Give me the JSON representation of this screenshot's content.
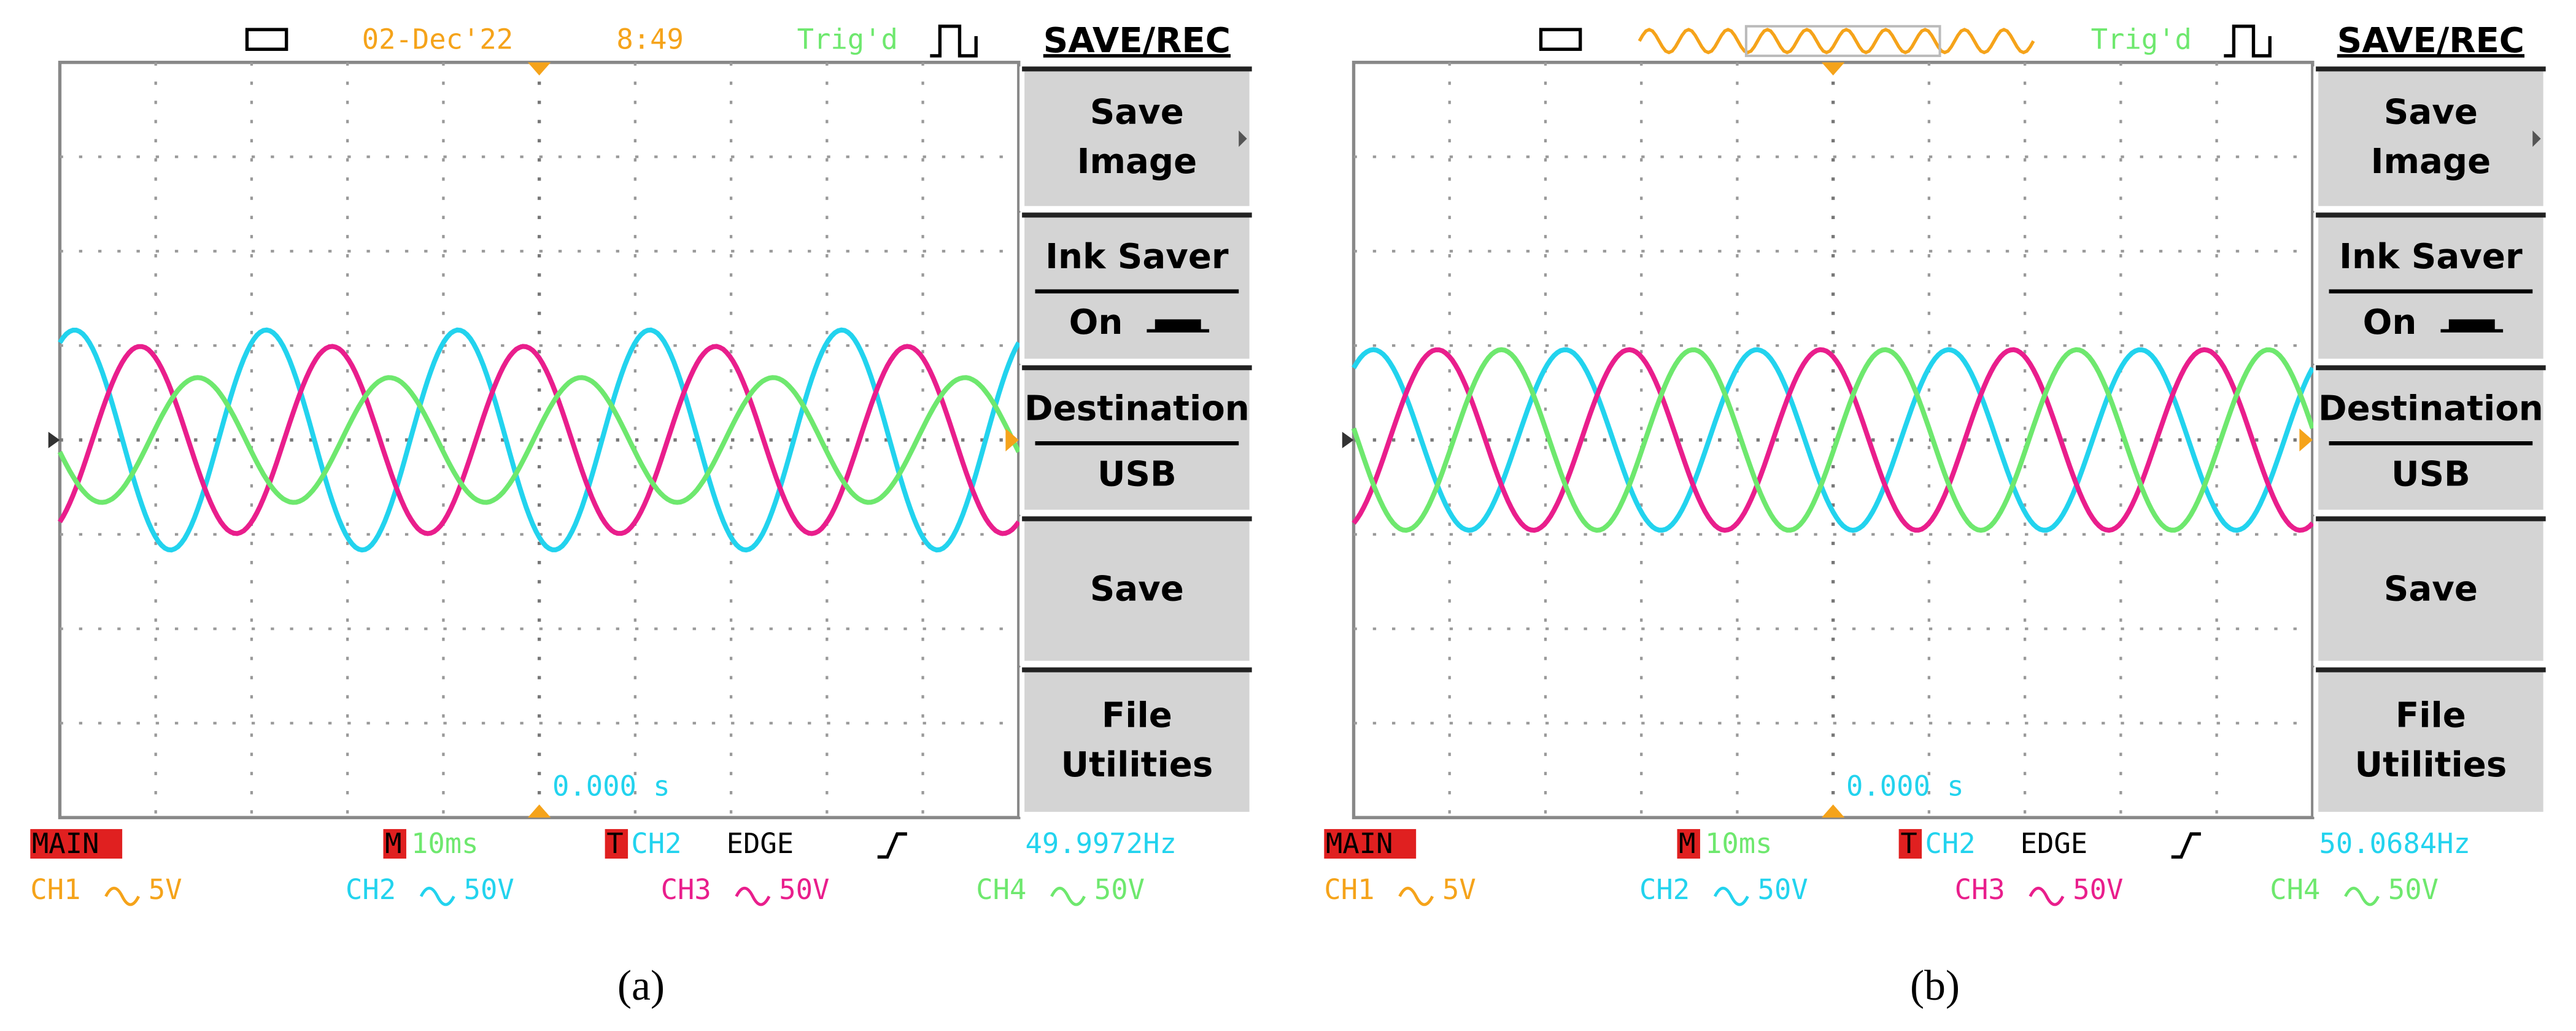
{
  "panels": [
    {
      "header": {
        "date": "02-Dec'22",
        "time": "8:49",
        "trigger": "Trig'd"
      },
      "menu": {
        "title": "SAVE/REC",
        "items": [
          [
            "Save",
            "Image"
          ],
          [
            "Ink Saver",
            "On"
          ],
          [
            "Destination",
            "USB"
          ],
          [
            "Save"
          ],
          [
            "File",
            "Utilities"
          ]
        ]
      },
      "time_offset": "0.000 s",
      "status": {
        "mode": "MAIN",
        "timebase_marker": "M",
        "timebase": "10ms",
        "trigger_marker": "T",
        "trigger_source": "CH2",
        "trigger_type": "EDGE",
        "frequency": "49.9972Hz"
      },
      "channels": [
        {
          "name": "CH1",
          "scale": "5V"
        },
        {
          "name": "CH2",
          "scale": "50V"
        },
        {
          "name": "CH3",
          "scale": "50V"
        },
        {
          "name": "CH4",
          "scale": "50V"
        }
      ],
      "caption": "(a)"
    },
    {
      "header": {
        "trigger": "Trig'd"
      },
      "menu": {
        "title": "SAVE/REC",
        "items": [
          [
            "Save",
            "Image"
          ],
          [
            "Ink Saver",
            "On"
          ],
          [
            "Destination",
            "USB"
          ],
          [
            "Save"
          ],
          [
            "File",
            "Utilities"
          ]
        ]
      },
      "time_offset": "0.000 s",
      "status": {
        "mode": "MAIN",
        "timebase_marker": "M",
        "timebase": "10ms",
        "trigger_marker": "T",
        "trigger_source": "CH2",
        "trigger_type": "EDGE",
        "frequency": "50.0684Hz"
      },
      "channels": [
        {
          "name": "CH1",
          "scale": "5V"
        },
        {
          "name": "CH2",
          "scale": "50V"
        },
        {
          "name": "CH3",
          "scale": "50V"
        },
        {
          "name": "CH4",
          "scale": "50V"
        }
      ],
      "caption": "(b)"
    }
  ]
}
